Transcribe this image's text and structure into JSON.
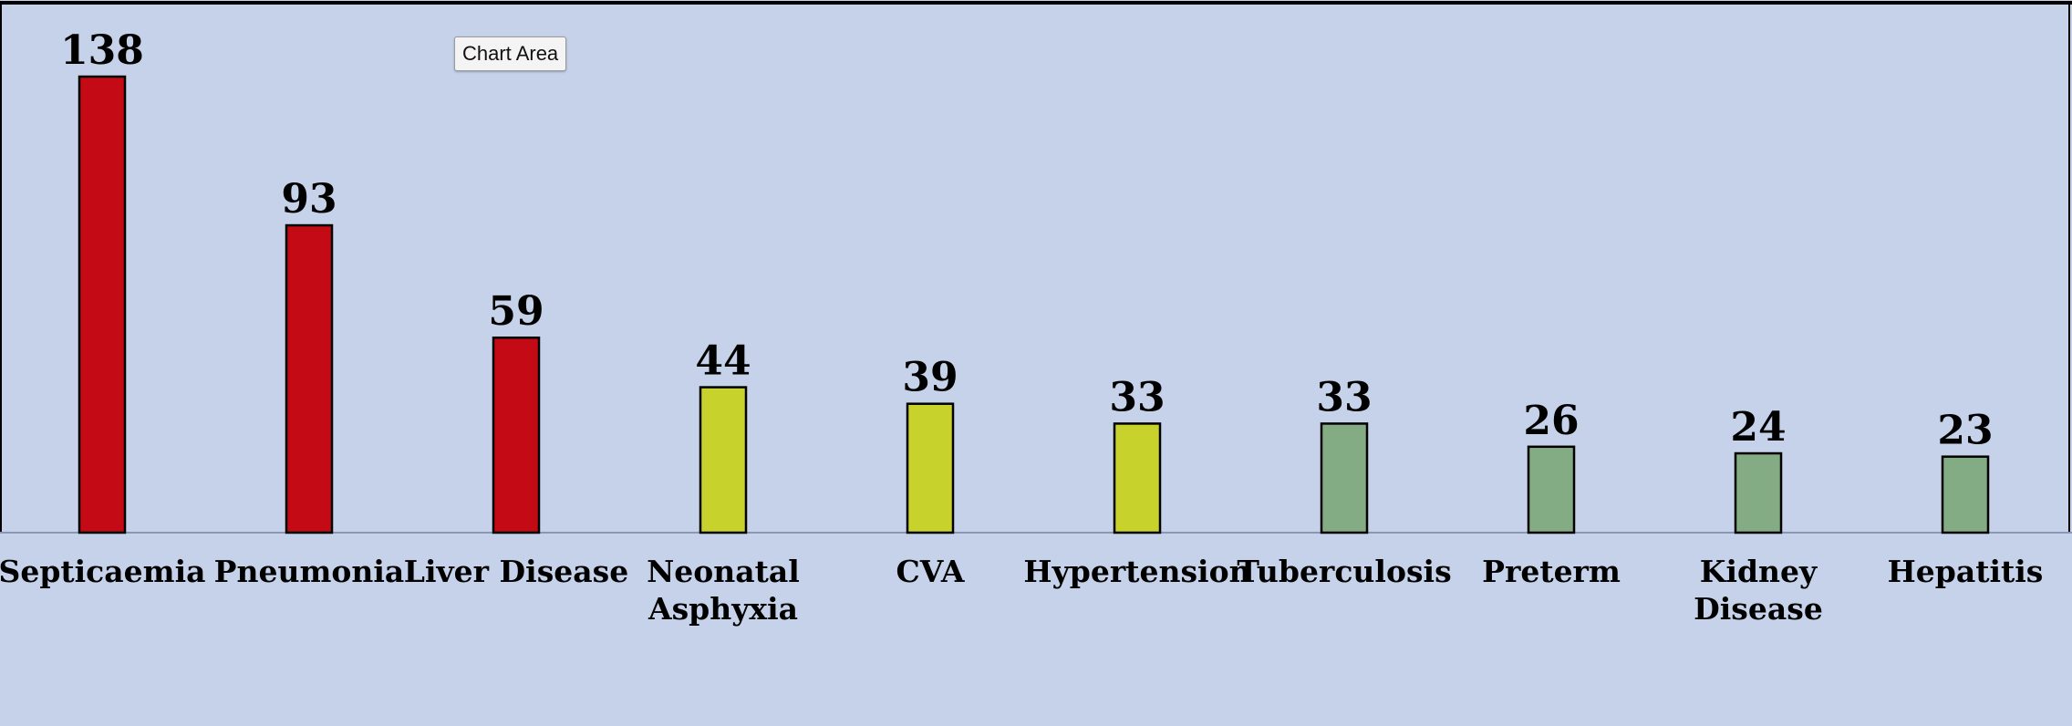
{
  "tooltip": {
    "text": "Chart Area"
  },
  "colors": {
    "background": "#c5d2e9",
    "high": "#c40a14",
    "medium": "#c8d22d",
    "low": "#83ab84",
    "outline": "#000000",
    "axis": "#8a97b4"
  },
  "chart_data": {
    "type": "bar",
    "title": "",
    "xlabel": "",
    "ylabel": "",
    "ylim": [
      0,
      160
    ],
    "grid": false,
    "legend": "none",
    "categories": [
      "Septicaemia",
      "Pneumonia",
      "Liver Disease",
      "Neonatal Asphyxia",
      "CVA",
      "Hypertension",
      "Tuberculosis",
      "Preterm",
      "Kidney Disease",
      "Hepatitis"
    ],
    "category_lines": [
      [
        "Septicaemia"
      ],
      [
        "Pneumonia"
      ],
      [
        "Liver Disease"
      ],
      [
        "Neonatal",
        "Asphyxia"
      ],
      [
        "CVA"
      ],
      [
        "Hypertension"
      ],
      [
        "Tuberculosis"
      ],
      [
        "Preterm"
      ],
      [
        "Kidney",
        "Disease"
      ],
      [
        "Hepatitis"
      ]
    ],
    "values": [
      138,
      93,
      59,
      44,
      39,
      33,
      33,
      26,
      24,
      23
    ],
    "data_labels": [
      "138",
      "93",
      "59",
      "44",
      "39",
      "33",
      "33",
      "26",
      "24",
      "23"
    ],
    "bar_groups": [
      "high",
      "high",
      "high",
      "medium",
      "medium",
      "medium",
      "low",
      "low",
      "low",
      "low"
    ]
  }
}
